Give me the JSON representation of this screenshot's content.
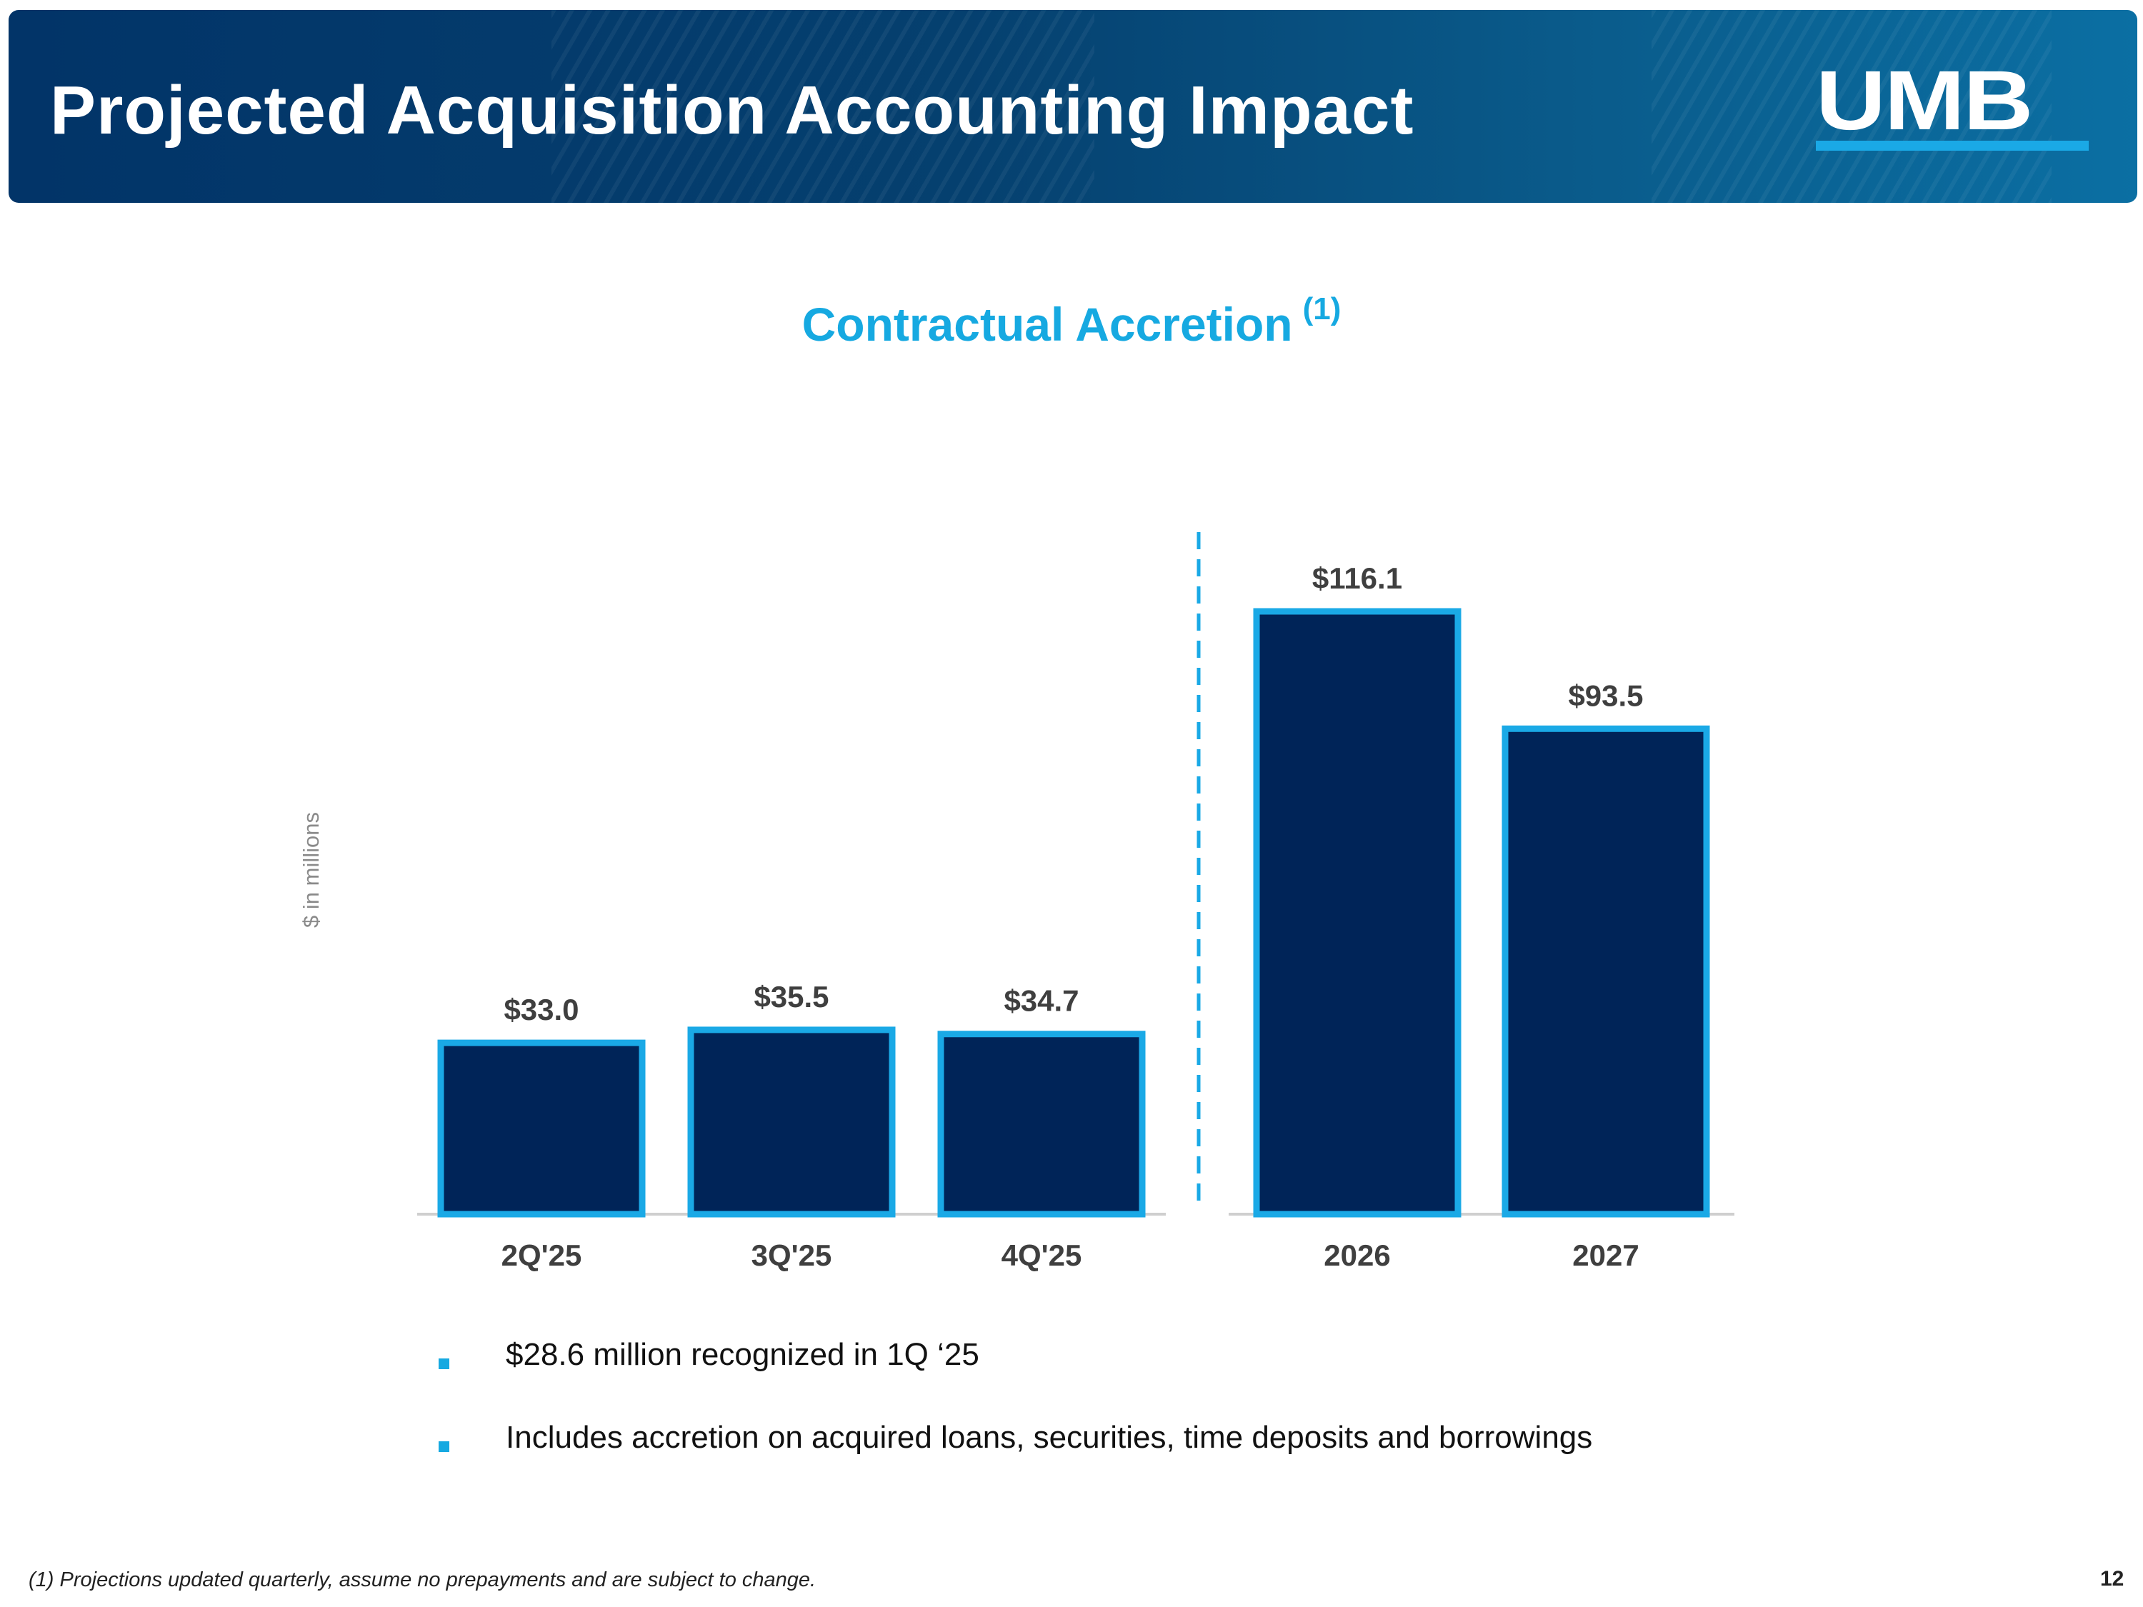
{
  "header": {
    "title": "Projected Acquisition Accounting Impact",
    "logo_text": "UMB"
  },
  "chart_data": {
    "type": "bar",
    "title": "Contractual Accretion",
    "title_note": "(1)",
    "ylabel": "$ in millions",
    "xlabel": "",
    "categories": [
      "2Q'25",
      "3Q'25",
      "4Q'25",
      "2026",
      "2027"
    ],
    "values": [
      33.0,
      35.5,
      34.7,
      116.1,
      93.5
    ],
    "data_labels": [
      "$33.0",
      "$35.5",
      "$34.7",
      "$116.1",
      "$93.5"
    ],
    "groups": [
      {
        "categories": [
          "2Q'25",
          "3Q'25",
          "4Q'25"
        ]
      },
      {
        "categories": [
          "2026",
          "2027"
        ]
      }
    ],
    "ylim": [
      0,
      116.1
    ],
    "grid": false,
    "legend": "none",
    "colors": {
      "bar_fill": "#002458",
      "bar_border": "#1aa9e6",
      "separator": "#1aa9e6",
      "axis": "#cfcfcf",
      "label": "#3f3f3f"
    }
  },
  "bullets": [
    "$28.6 million recognized in 1Q ‘25",
    "Includes accretion on acquired loans, securities, time deposits and borrowings"
  ],
  "footnote": "(1) Projections updated quarterly, assume no prepayments and are subject to change.",
  "page_number": "12"
}
